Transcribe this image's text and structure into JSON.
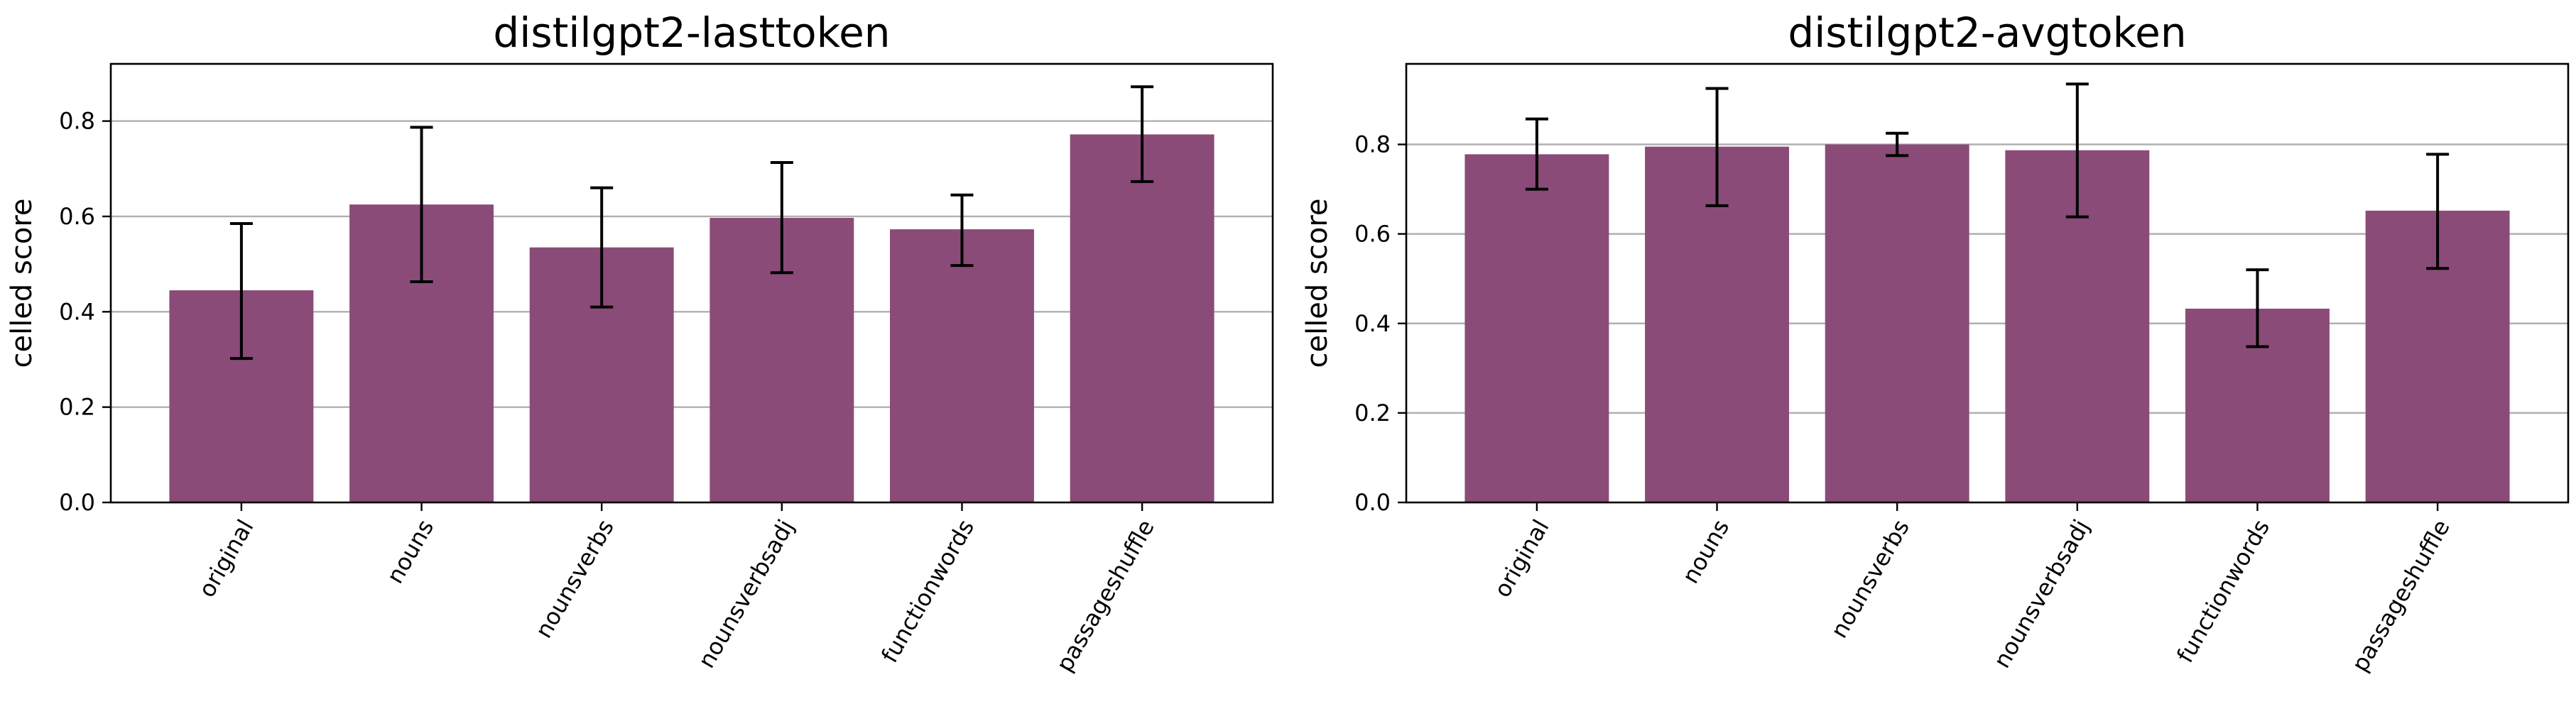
{
  "colors": {
    "bar": "#8a4b78",
    "errorbar": "#000000",
    "grid": "#b0b0b0",
    "axes": "#000000"
  },
  "chart_data": [
    {
      "type": "bar",
      "title": "distilgpt2-lasttoken",
      "xlabel": "",
      "ylabel": "celled score",
      "categories": [
        "original",
        "nouns",
        "nounsverbs",
        "nounsverbsadj",
        "functionwords",
        "passageshuffle"
      ],
      "values": [
        0.445,
        0.625,
        0.535,
        0.597,
        0.573,
        0.772
      ],
      "error_low": [
        0.302,
        0.463,
        0.41,
        0.482,
        0.497,
        0.673
      ],
      "error_high": [
        0.585,
        0.787,
        0.66,
        0.713,
        0.645,
        0.872
      ],
      "ylim": [
        0,
        0.92
      ],
      "yticks": [
        0.0,
        0.2,
        0.4,
        0.6,
        0.8
      ],
      "ytick_labels": [
        "0.0",
        "0.2",
        "0.4",
        "0.6",
        "0.8"
      ],
      "grid": "y"
    },
    {
      "type": "bar",
      "title": "distilgpt2-avgtoken",
      "xlabel": "",
      "ylabel": "celled score",
      "categories": [
        "original",
        "nouns",
        "nounsverbs",
        "nounsverbsadj",
        "functionwords",
        "passageshuffle"
      ],
      "values": [
        0.778,
        0.795,
        0.8,
        0.787,
        0.433,
        0.652
      ],
      "error_low": [
        0.7,
        0.663,
        0.775,
        0.638,
        0.348,
        0.523
      ],
      "error_high": [
        0.857,
        0.925,
        0.825,
        0.935,
        0.52,
        0.778
      ],
      "ylim": [
        0,
        0.98
      ],
      "yticks": [
        0.0,
        0.2,
        0.4,
        0.6,
        0.8
      ],
      "ytick_labels": [
        "0.0",
        "0.2",
        "0.4",
        "0.6",
        "0.8"
      ],
      "grid": "y"
    }
  ]
}
